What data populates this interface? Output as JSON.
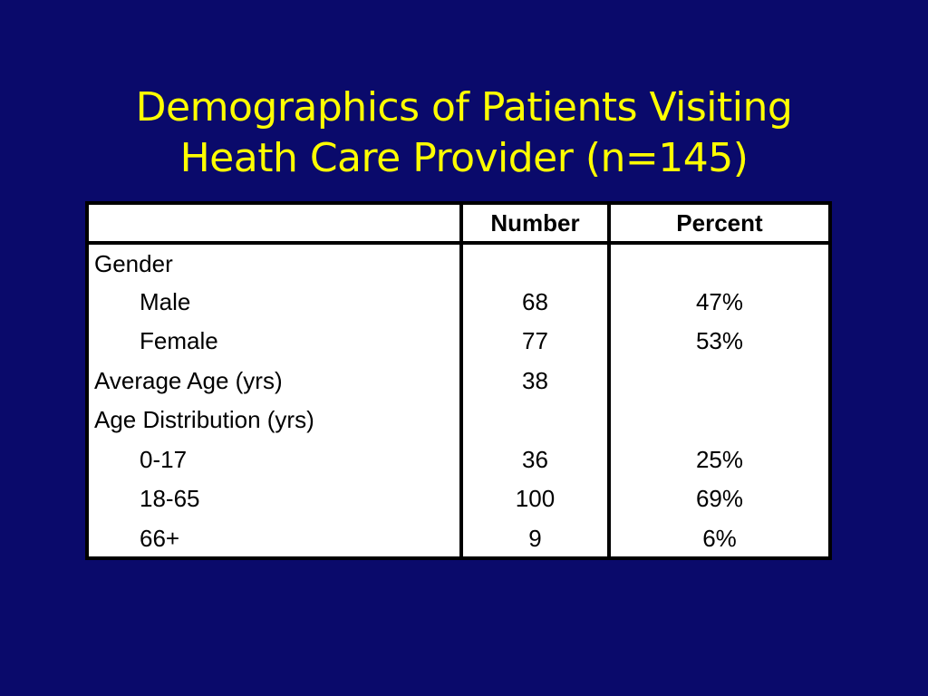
{
  "slide": {
    "title_line1": "Demographics of Patients Visiting",
    "title_line2": "Heath Care Provider (n=145)",
    "colors": {
      "background": "#0a0a6b",
      "title": "#ffff00",
      "table_background": "#ffffff",
      "table_border": "#000000"
    }
  },
  "table": {
    "headers": [
      "",
      "Number",
      "Percent"
    ],
    "rows": [
      {
        "label": "Gender",
        "number": "",
        "percent": "",
        "indent": false
      },
      {
        "label": "Male",
        "number": "68",
        "percent": "47%",
        "indent": true
      },
      {
        "label": "Female",
        "number": "77",
        "percent": "53%",
        "indent": true
      },
      {
        "label": "Average Age (yrs)",
        "number": "38",
        "percent": "",
        "indent": false
      },
      {
        "label": "Age Distribution (yrs)",
        "number": "",
        "percent": "",
        "indent": false
      },
      {
        "label": "0-17",
        "number": "36",
        "percent": "25%",
        "indent": true
      },
      {
        "label": "18-65",
        "number": "100",
        "percent": "69%",
        "indent": true
      },
      {
        "label": "66+",
        "number": "9",
        "percent": "6%",
        "indent": true
      }
    ]
  }
}
